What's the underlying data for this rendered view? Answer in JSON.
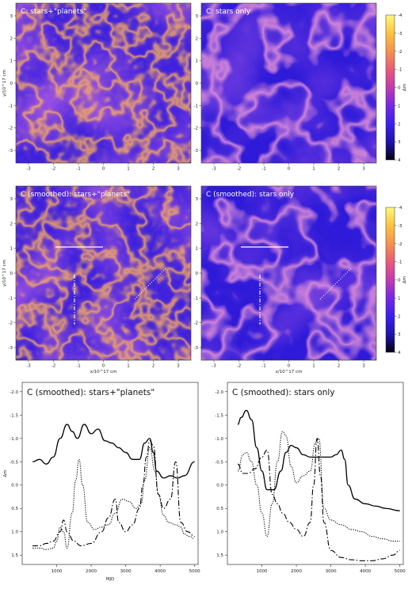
{
  "figure": {
    "panels": [
      {
        "id": "A",
        "title": "C: stars+\"planets\"",
        "theme": "dense"
      },
      {
        "id": "B",
        "title": "C: stars only",
        "theme": "sparse"
      },
      {
        "id": "C",
        "title": "C (smoothed): stars+\"planets\"",
        "theme": "dense"
      },
      {
        "id": "D",
        "title": "C (smoothed): stars only",
        "theme": "sparse"
      }
    ],
    "map_x_ticks": [
      "-3",
      "-2",
      "-1",
      "0",
      "1",
      "2",
      "3"
    ],
    "map_y_ticks": [
      "3",
      "2",
      "1",
      "0",
      "-1",
      "-2",
      "-3"
    ],
    "map_xlabel": "x/10^17 cm",
    "map_ylabel": "y/10^17 cm",
    "colorbar": {
      "label": "Δm",
      "ticks": [
        "-4",
        "-3",
        "-2",
        "-1",
        "0",
        "1",
        "2",
        "3",
        "4"
      ],
      "colors": [
        "#fff97a",
        "#fcc43f",
        "#f7914d",
        "#e8597a",
        "#c23bb0",
        "#7a27e6",
        "#3a20f0",
        "#1e12a8",
        "#04020f"
      ]
    }
  },
  "chart_data": [
    {
      "type": "line",
      "title": "C (smoothed): stars+\"planets\"",
      "xlabel": "MJD",
      "ylabel": "Δm",
      "xlim": [
        0,
        5100
      ],
      "ylim": [
        1.7,
        -2.2
      ],
      "x_ticks": [
        1000,
        2000,
        3000,
        4000,
        5000
      ],
      "y_ticks": [
        -2.0,
        -1.5,
        -1.0,
        -0.5,
        0.0,
        0.5,
        1.0,
        1.5
      ],
      "series": [
        {
          "style": "solid",
          "x": [
            300,
            500,
            700,
            900,
            1100,
            1300,
            1450,
            1600,
            1800,
            2000,
            2200,
            2400,
            2600,
            2800,
            3000,
            3200,
            3400,
            3550,
            3700,
            3800,
            3900,
            4100,
            4300,
            4500,
            4700,
            5000
          ],
          "y": [
            -0.5,
            -0.55,
            -0.45,
            -0.6,
            -1.0,
            -1.3,
            -1.15,
            -1.0,
            -1.3,
            -1.1,
            -1.2,
            -0.95,
            -0.9,
            -0.8,
            -0.7,
            -0.55,
            -0.55,
            -0.9,
            -1.0,
            -0.7,
            -0.3,
            -0.15,
            -0.2,
            -0.15,
            -0.2,
            -0.5
          ]
        },
        {
          "style": "dashdot",
          "x": [
            300,
            500,
            700,
            900,
            1100,
            1200,
            1300,
            1500,
            1700,
            2000,
            2300,
            2500,
            2700,
            2800,
            3000,
            3200,
            3400,
            3500,
            3600,
            3700,
            3800,
            3950,
            4100,
            4300,
            4450,
            4600,
            4800,
            5000
          ],
          "y": [
            1.3,
            1.3,
            1.25,
            1.2,
            1.0,
            0.75,
            1.0,
            1.2,
            1.3,
            1.25,
            1.0,
            0.7,
            0.3,
            0.8,
            1.0,
            0.85,
            0.5,
            0.0,
            -0.6,
            -0.95,
            -0.85,
            0.2,
            0.5,
            0.3,
            -0.5,
            0.8,
            1.0,
            1.1
          ]
        },
        {
          "style": "dotted",
          "x": [
            300,
            500,
            700,
            900,
            1000,
            1100,
            1200,
            1300,
            1450,
            1550,
            1650,
            1750,
            1900,
            2100,
            2300,
            2500,
            2700,
            2900,
            3100,
            3300,
            3450,
            3550,
            3700,
            3850,
            3950,
            4100,
            4250,
            4450,
            4600,
            4700,
            4850,
            5000
          ],
          "y": [
            1.35,
            1.35,
            1.38,
            1.35,
            1.2,
            0.9,
            1.0,
            1.35,
            0.6,
            -0.1,
            -0.55,
            0.0,
            0.8,
            0.95,
            0.9,
            0.85,
            0.6,
            0.3,
            0.35,
            0.5,
            0.4,
            -0.1,
            -0.8,
            -0.3,
            0.2,
            0.65,
            0.8,
            0.85,
            0.9,
            1.05,
            1.1,
            1.15
          ]
        }
      ]
    },
    {
      "type": "line",
      "title": "C (smoothed): stars only",
      "xlabel": "",
      "ylabel": "",
      "xlim": [
        0,
        5100
      ],
      "ylim": [
        1.7,
        -2.2
      ],
      "x_ticks": [
        1000,
        2000,
        3000,
        4000,
        5000
      ],
      "y_ticks": [
        -2.0,
        -1.5,
        -1.0,
        -0.5,
        0.0,
        0.5,
        1.0,
        1.5
      ],
      "series": [
        {
          "style": "solid",
          "x": [
            300,
            400,
            550,
            700,
            850,
            1000,
            1150,
            1350,
            1550,
            1700,
            1850,
            2000,
            2200,
            2400,
            2600,
            2800,
            3000,
            3150,
            3300,
            3400,
            3500,
            3700,
            4000,
            4300,
            4600,
            5000
          ],
          "y": [
            -1.3,
            -1.45,
            -1.6,
            -1.4,
            -0.8,
            -0.3,
            0.1,
            0.1,
            -0.3,
            -0.7,
            -0.85,
            -0.8,
            -0.65,
            -0.6,
            -0.6,
            -0.6,
            -0.6,
            -0.65,
            -0.75,
            -0.55,
            0.0,
            0.3,
            0.4,
            0.45,
            0.5,
            0.55
          ]
        },
        {
          "style": "dashdot",
          "x": [
            300,
            450,
            600,
            800,
            1000,
            1150,
            1300,
            1450,
            1600,
            1800,
            2000,
            2200,
            2400,
            2500,
            2600,
            2700,
            2800,
            3000,
            3300,
            3600,
            3900,
            4200,
            4500,
            4800,
            5000
          ],
          "y": [
            -0.45,
            -0.25,
            -0.25,
            -0.35,
            -0.6,
            -0.75,
            0.2,
            0.4,
            0.6,
            0.8,
            0.95,
            1.1,
            0.8,
            0.0,
            -1.0,
            -0.2,
            0.8,
            1.4,
            1.55,
            1.6,
            1.62,
            1.62,
            1.58,
            1.5,
            1.4
          ]
        },
        {
          "style": "dotted",
          "x": [
            300,
            450,
            550,
            700,
            850,
            1000,
            1150,
            1300,
            1450,
            1600,
            1700,
            1850,
            2000,
            2200,
            2400,
            2550,
            2650,
            2800,
            3000,
            3300,
            3600,
            3900,
            4200,
            4500,
            4800,
            5000
          ],
          "y": [
            -0.3,
            -0.65,
            -0.7,
            -0.5,
            0.0,
            0.6,
            1.1,
            0.4,
            -0.5,
            -1.15,
            -1.05,
            -0.4,
            -0.05,
            -0.2,
            -0.3,
            -0.9,
            -1.0,
            0.5,
            0.75,
            0.85,
            0.95,
            1.0,
            1.1,
            1.15,
            1.2,
            1.2
          ]
        }
      ]
    }
  ]
}
